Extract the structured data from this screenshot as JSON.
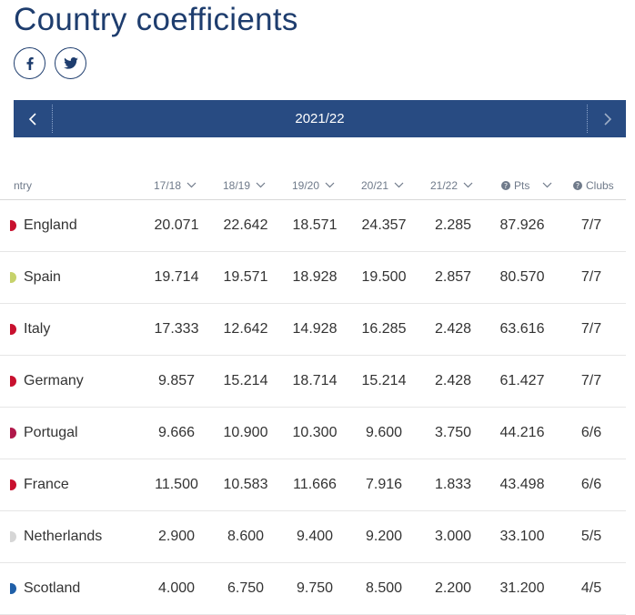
{
  "page": {
    "title": "Country coefficients"
  },
  "social": [
    {
      "name": "facebook-icon",
      "label": "f"
    },
    {
      "name": "twitter-icon",
      "label": "twitter"
    }
  ],
  "season": {
    "label": "2021/22"
  },
  "columns": {
    "country": "ntry",
    "s1": "17/18",
    "s2": "18/19",
    "s3": "19/20",
    "s4": "20/21",
    "s5": "21/22",
    "pts": "Pts",
    "clubs": "Clubs"
  },
  "rows": [
    {
      "country": "England",
      "flag": "#c8102e",
      "s1": "20.071",
      "s2": "22.642",
      "s3": "18.571",
      "s4": "24.357",
      "s5": "2.285",
      "pts": "87.926",
      "clubs": "7/7"
    },
    {
      "country": "Spain",
      "flag": "#c6d26b",
      "s1": "19.714",
      "s2": "19.571",
      "s3": "18.928",
      "s4": "19.500",
      "s5": "2.857",
      "pts": "80.570",
      "clubs": "7/7"
    },
    {
      "country": "Italy",
      "flag": "#c8102e",
      "s1": "17.333",
      "s2": "12.642",
      "s3": "14.928",
      "s4": "16.285",
      "s5": "2.428",
      "pts": "63.616",
      "clubs": "7/7"
    },
    {
      "country": "Germany",
      "flag": "#c8102e",
      "s1": "9.857",
      "s2": "15.214",
      "s3": "18.714",
      "s4": "15.214",
      "s5": "2.428",
      "pts": "61.427",
      "clubs": "7/7"
    },
    {
      "country": "Portugal",
      "flag": "#b0184a",
      "s1": "9.666",
      "s2": "10.900",
      "s3": "10.300",
      "s4": "9.600",
      "s5": "3.750",
      "pts": "44.216",
      "clubs": "6/6"
    },
    {
      "country": "France",
      "flag": "#c8102e",
      "s1": "11.500",
      "s2": "10.583",
      "s3": "11.666",
      "s4": "7.916",
      "s5": "1.833",
      "pts": "43.498",
      "clubs": "6/6"
    },
    {
      "country": "Netherlands",
      "flag": "#d6d6d6",
      "s1": "2.900",
      "s2": "8.600",
      "s3": "9.400",
      "s4": "9.200",
      "s5": "3.000",
      "pts": "33.100",
      "clubs": "5/5"
    },
    {
      "country": "Scotland",
      "flag": "#1f5fa8",
      "s1": "4.000",
      "s2": "6.750",
      "s3": "9.750",
      "s4": "8.500",
      "s5": "2.200",
      "pts": "31.200",
      "clubs": "4/5"
    }
  ]
}
